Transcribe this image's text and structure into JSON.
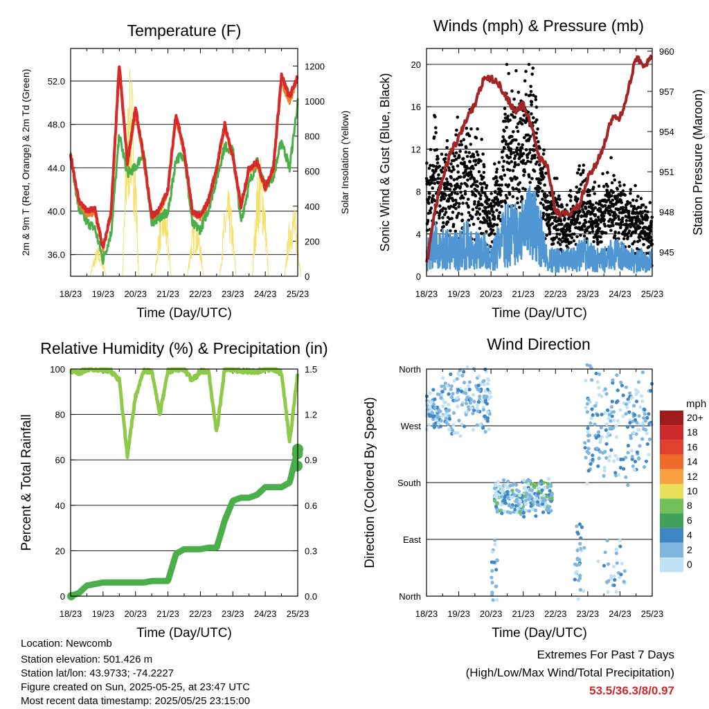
{
  "x_ticks": [
    "18/23",
    "19/23",
    "20/23",
    "21/23",
    "22/23",
    "23/23",
    "24/23",
    "25/23"
  ],
  "x_label": "Time (Day/UTC)",
  "panels": {
    "temperature": {
      "title": "Temperature (F)",
      "ylabel_left": "2m & 9m T (Red, Orange) & 2m Td (Green)",
      "ylabel_right": "Solar Insolation (Yellow)",
      "left_ticks": [
        "36.0",
        "40.0",
        "44.0",
        "48.0",
        "52.0"
      ],
      "right_ticks": [
        "0",
        "200",
        "400",
        "600",
        "800",
        "1000",
        "1200"
      ]
    },
    "winds": {
      "title": "Winds (mph) & Pressure (mb)",
      "ylabel_left": "Sonic Wind & Gust (Blue, Black)",
      "ylabel_right": "Station Pressure (Maroon)",
      "left_ticks": [
        "0",
        "4",
        "8",
        "12",
        "16",
        "20"
      ],
      "right_ticks": [
        "945",
        "948",
        "951",
        "954",
        "957",
        "960"
      ]
    },
    "humidity": {
      "title": "Relative Humidity (%) & Precipitation (in)",
      "ylabel_left": "Percent & Total Rainfall",
      "left_ticks": [
        "0",
        "20",
        "40",
        "60",
        "80",
        "100"
      ],
      "right_ticks": [
        "0.0",
        "0.3",
        "0.6",
        "0.9",
        "1.2",
        "1.5"
      ]
    },
    "direction": {
      "title": "Wind Direction",
      "ylabel_left": "Direction (Colored By Speed)",
      "left_ticks": [
        "North",
        "East",
        "South",
        "West",
        "North"
      ],
      "legend_title": "mph",
      "legend_labels": [
        "20+",
        "18",
        "16",
        "14",
        "12",
        "10",
        "8",
        "6",
        "4",
        "2",
        "0"
      ],
      "legend_colors": [
        "#a01c1c",
        "#cc2a2a",
        "#e0412f",
        "#f06a2a",
        "#f7a143",
        "#e9e05a",
        "#72c05a",
        "#41a15a",
        "#3e86c4",
        "#7fb6e0",
        "#bfe3f5"
      ]
    }
  },
  "info": {
    "location": "Location: Newcomb",
    "elevation": "Station elevation: 501.426 m",
    "latlon": "Station lat/lon: 43.9733; -74.2227",
    "created": "Figure created on Sun, 2025-05-25, at 23:47 UTC",
    "recent": "Most recent data timestamp: 2025/05/25 23:15:00"
  },
  "extremes": {
    "title": "Extremes For Past 7 Days",
    "subtitle": "(High/Low/Max Wind/Total Precipitation)",
    "value": "53.5/36.3/8/0.97"
  },
  "chart_data": [
    {
      "type": "line",
      "title": "Temperature (F)",
      "x_days": [
        0,
        0.25,
        0.5,
        0.75,
        1,
        1.25,
        1.5,
        1.75,
        2,
        2.25,
        2.5,
        2.75,
        3,
        3.25,
        3.5,
        3.75,
        4,
        4.25,
        4.5,
        4.75,
        5,
        5.25,
        5.5,
        5.75,
        6,
        6.25,
        6.5,
        6.75,
        7
      ],
      "ylim": [
        34,
        55
      ],
      "y2lim": [
        0,
        1300
      ],
      "series": [
        {
          "color": "#d62a2a",
          "values": [
            45.2,
            41,
            40,
            40.2,
            36.5,
            40,
            53.5,
            44.5,
            49.5,
            45,
            39.5,
            40.2,
            42,
            49,
            45.5,
            40,
            39.5,
            41,
            44,
            48,
            45,
            40.5,
            44,
            44.5,
            42.2,
            44,
            52.5,
            50.5,
            52.5
          ]
        },
        {
          "color": "#f07b2a",
          "values": [
            45,
            40.8,
            39.7,
            39.8,
            36.4,
            39.8,
            52.8,
            44.2,
            49,
            44.7,
            39.3,
            40,
            41.8,
            48.5,
            45.2,
            39.9,
            39.4,
            40.8,
            43.8,
            47.6,
            44.8,
            40.3,
            43.8,
            44.2,
            42,
            43.7,
            51.9,
            50,
            52.2
          ]
        },
        {
          "color": "#4aae4a",
          "values": [
            45.1,
            40.2,
            39,
            38.4,
            35.5,
            38,
            47,
            43.5,
            44,
            45.5,
            39,
            39.5,
            39.8,
            44.8,
            45.2,
            38.8,
            38.3,
            40.2,
            43,
            46,
            45.6,
            39,
            42.5,
            44.6,
            42.3,
            43.2,
            46.5,
            44,
            50
          ]
        }
      ],
      "solar_peaks": [
        {
          "day": 0.85,
          "value": 170
        },
        {
          "day": 1.85,
          "value": 1200
        },
        {
          "day": 2.85,
          "value": 450
        },
        {
          "day": 3.85,
          "value": 350
        },
        {
          "day": 4.85,
          "value": 500
        },
        {
          "day": 5.85,
          "value": 700
        },
        {
          "day": 6.85,
          "value": 420
        }
      ],
      "solar_color": "#f5e06a"
    },
    {
      "type": "scatter",
      "title": "Winds (mph) & Pressure (mb)",
      "ylim": [
        0,
        21.5
      ],
      "y2lim": [
        943.2,
        960.2
      ],
      "x_days": [
        0,
        0.25,
        0.5,
        0.75,
        1,
        1.25,
        1.5,
        1.75,
        2,
        2.25,
        2.5,
        2.75,
        3,
        3.25,
        3.5,
        3.75,
        4,
        4.25,
        4.5,
        4.75,
        5,
        5.25,
        5.5,
        5.75,
        6,
        6.25,
        6.5,
        6.75,
        7
      ],
      "gust_level": [
        7,
        9,
        8,
        8,
        9,
        10,
        8,
        8,
        5,
        8,
        12,
        11,
        12,
        14,
        10,
        5,
        6,
        4,
        5,
        7,
        6,
        5,
        6,
        7,
        6,
        5,
        5,
        5,
        4
      ],
      "wind_level": [
        2,
        3,
        2.5,
        2.5,
        2.5,
        3,
        2.5,
        2.5,
        1.5,
        3,
        4,
        4,
        4,
        5,
        4,
        1.5,
        1.5,
        1.5,
        1.5,
        2,
        2,
        1.5,
        1.5,
        2,
        2,
        1.5,
        1.5,
        1.5,
        1.5
      ],
      "pressure": [
        944,
        948,
        950.5,
        952.5,
        953.5,
        955,
        956,
        957.8,
        958,
        957.5,
        956.5,
        955.5,
        956,
        954.5,
        952,
        951.5,
        948,
        947.8,
        948,
        948.5,
        950.5,
        951.5,
        953,
        955,
        955,
        957,
        959.5,
        959,
        959.5
      ],
      "series": [
        {
          "color": "#000000",
          "marker": "dot"
        },
        {
          "color": "#4f96d2",
          "marker": "line"
        },
        {
          "color": "#a32424",
          "marker": "line"
        }
      ]
    },
    {
      "type": "line",
      "title": "Relative Humidity (%) & Precipitation (in)",
      "x_days": [
        0,
        0.25,
        0.5,
        0.75,
        1,
        1.25,
        1.5,
        1.75,
        2,
        2.25,
        2.5,
        2.75,
        3,
        3.25,
        3.5,
        3.75,
        4,
        4.25,
        4.5,
        4.75,
        5,
        5.25,
        5.5,
        5.75,
        6,
        6.25,
        6.5,
        6.75,
        7
      ],
      "ylim": [
        0,
        100
      ],
      "y2lim": [
        0,
        1.5
      ],
      "series": [
        {
          "color": "#8fc94a",
          "values": [
            99,
            98,
            100,
            100,
            100,
            99,
            95,
            62,
            88,
            99,
            99,
            80,
            99,
            100,
            100,
            95,
            99,
            99,
            72,
            100,
            100,
            99,
            99,
            99,
            100,
            100,
            98,
            68,
            98
          ]
        },
        {
          "color": "#4aae4a",
          "values": [
            0,
            0.02,
            0.07,
            0.08,
            0.09,
            0.09,
            0.09,
            0.09,
            0.09,
            0.09,
            0.1,
            0.1,
            0.1,
            0.28,
            0.31,
            0.31,
            0.31,
            0.32,
            0.32,
            0.5,
            0.63,
            0.65,
            0.65,
            0.67,
            0.72,
            0.72,
            0.72,
            0.75,
            0.97
          ]
        }
      ]
    },
    {
      "type": "scatter",
      "title": "Wind Direction",
      "ylim": [
        0,
        360
      ],
      "clusters": [
        {
          "day_from": 0,
          "day_to": 0.4,
          "dir_from": 260,
          "dir_to": 330,
          "n": 60
        },
        {
          "day_from": 0.4,
          "day_to": 2.0,
          "dir_from": 255,
          "dir_to": 360,
          "n": 170
        },
        {
          "day_from": 2.0,
          "day_to": 2.2,
          "dir_from": 0,
          "dir_to": 100,
          "n": 20
        },
        {
          "day_from": 2.1,
          "day_to": 3.9,
          "dir_from": 130,
          "dir_to": 185,
          "n": 260
        },
        {
          "day_from": 4.6,
          "day_to": 4.9,
          "dir_from": 0,
          "dir_to": 130,
          "n": 30
        },
        {
          "day_from": 4.9,
          "day_to": 7,
          "dir_from": 185,
          "dir_to": 360,
          "n": 210
        },
        {
          "day_from": 5.3,
          "day_to": 6.2,
          "dir_from": 0,
          "dir_to": 90,
          "n": 30
        }
      ],
      "series": [
        {
          "color": "#7fb6e0",
          "marker": "dot"
        },
        {
          "color": "#3e86c4",
          "marker": "dot"
        },
        {
          "color": "#72c05a",
          "marker": "dot"
        }
      ]
    }
  ]
}
